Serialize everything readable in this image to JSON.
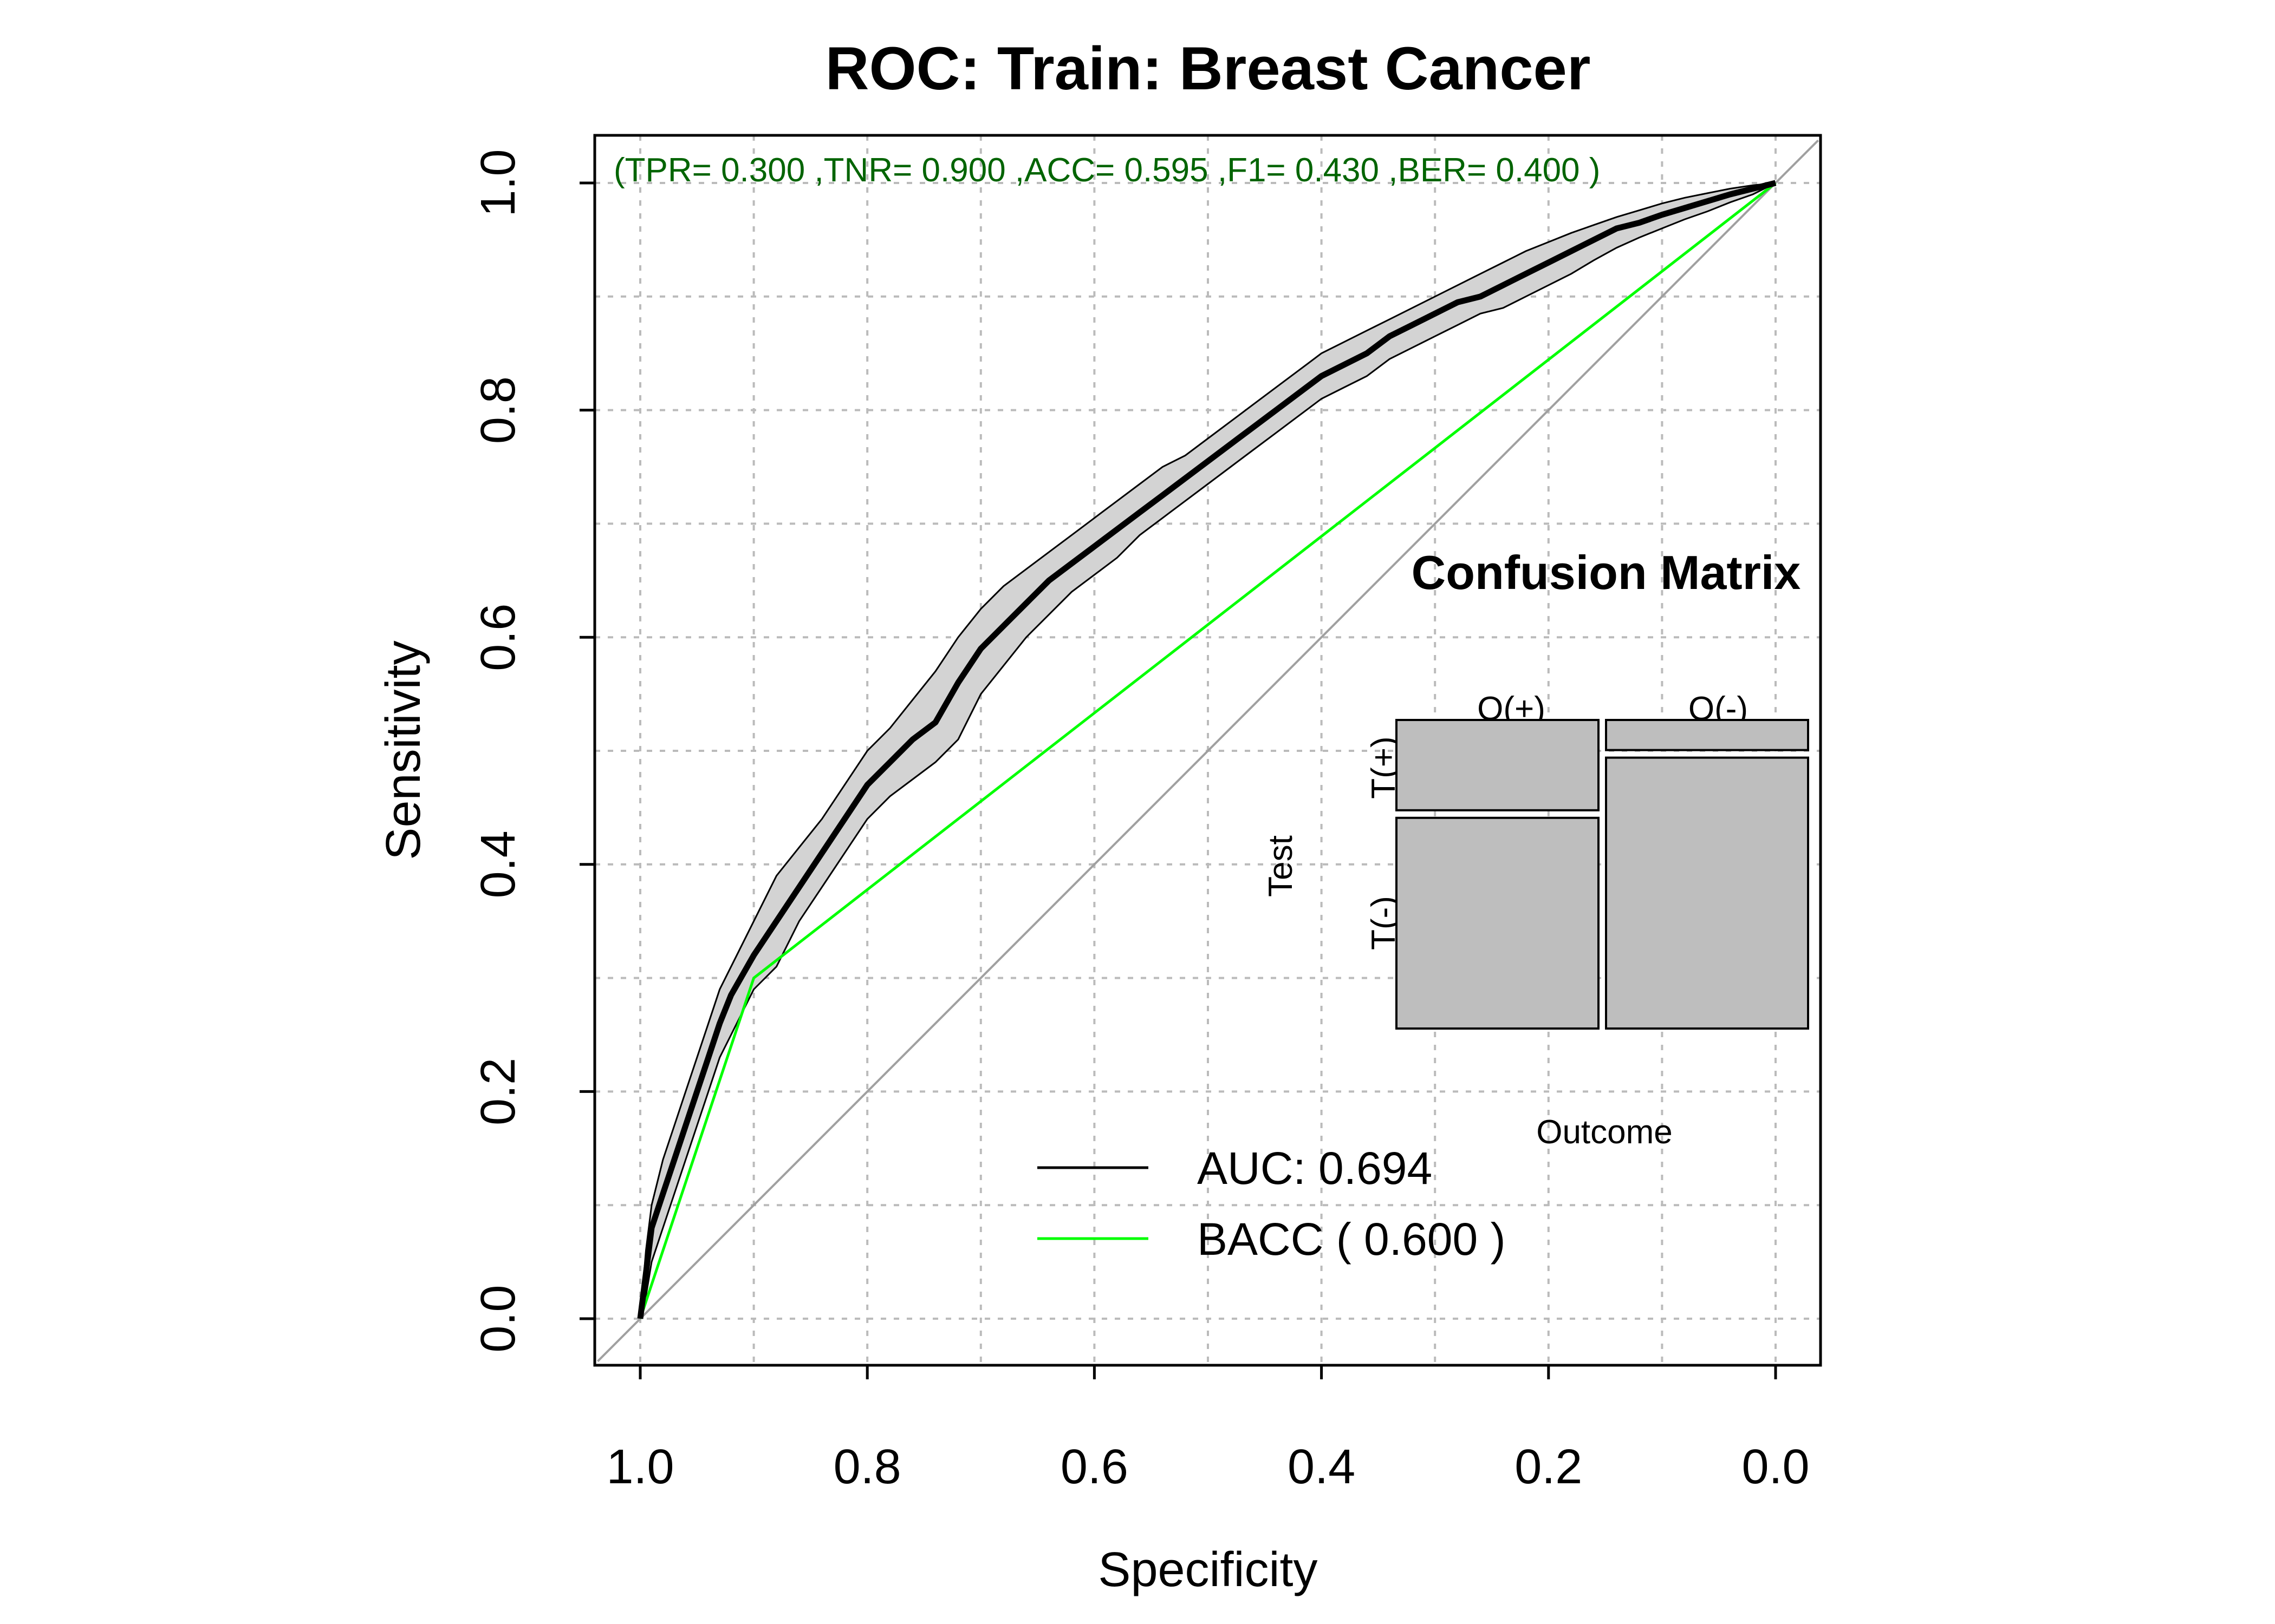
{
  "chart_data": {
    "type": "line",
    "title": "ROC: Train: Breast Cancer",
    "xlabel": "Specificity",
    "ylabel": "Sensitivity",
    "x_reversed": true,
    "xlim": [
      1.0,
      0.0
    ],
    "ylim": [
      0.0,
      1.0
    ],
    "x_ticks": [
      "1.0",
      "0.8",
      "0.6",
      "0.4",
      "0.2",
      "0.0"
    ],
    "y_ticks": [
      "0.0",
      "0.2",
      "0.4",
      "0.6",
      "0.8",
      "1.0"
    ],
    "grid": true,
    "metrics_text": "(TPR= 0.300 ,TNR= 0.900 ,ACC= 0.595 ,F1= 0.430 ,BER= 0.400 )",
    "colors": {
      "roc": "#000000",
      "band_fill": "#d3d3d3",
      "bacc": "#00ff00",
      "diagonal": "#a0a0a0",
      "metrics": "#006400",
      "grid": "#bbbbbb",
      "cm_fill": "#bebebe"
    },
    "series": [
      {
        "role": "roc",
        "specificity": [
          1.0,
          0.995,
          0.99,
          0.98,
          0.97,
          0.96,
          0.95,
          0.94,
          0.93,
          0.92,
          0.9,
          0.88,
          0.86,
          0.84,
          0.82,
          0.8,
          0.78,
          0.76,
          0.74,
          0.72,
          0.7,
          0.68,
          0.66,
          0.64,
          0.62,
          0.6,
          0.58,
          0.56,
          0.54,
          0.52,
          0.5,
          0.48,
          0.46,
          0.44,
          0.42,
          0.4,
          0.38,
          0.36,
          0.34,
          0.32,
          0.3,
          0.28,
          0.26,
          0.24,
          0.22,
          0.2,
          0.18,
          0.16,
          0.14,
          0.12,
          0.1,
          0.08,
          0.06,
          0.04,
          0.02,
          0.0
        ],
        "sensitivity": [
          0.0,
          0.04,
          0.08,
          0.11,
          0.14,
          0.17,
          0.2,
          0.23,
          0.26,
          0.285,
          0.32,
          0.35,
          0.38,
          0.41,
          0.44,
          0.47,
          0.49,
          0.51,
          0.525,
          0.56,
          0.59,
          0.61,
          0.63,
          0.65,
          0.665,
          0.68,
          0.695,
          0.71,
          0.725,
          0.74,
          0.755,
          0.77,
          0.785,
          0.8,
          0.815,
          0.83,
          0.84,
          0.85,
          0.865,
          0.875,
          0.885,
          0.895,
          0.9,
          0.91,
          0.92,
          0.93,
          0.94,
          0.95,
          0.96,
          0.965,
          0.972,
          0.978,
          0.984,
          0.99,
          0.995,
          1.0
        ]
      },
      {
        "role": "band_upper",
        "specificity": [
          1.0,
          0.995,
          0.99,
          0.98,
          0.97,
          0.96,
          0.95,
          0.94,
          0.93,
          0.92,
          0.9,
          0.88,
          0.86,
          0.84,
          0.82,
          0.8,
          0.78,
          0.76,
          0.74,
          0.72,
          0.7,
          0.68,
          0.66,
          0.64,
          0.62,
          0.6,
          0.58,
          0.56,
          0.54,
          0.52,
          0.5,
          0.48,
          0.46,
          0.44,
          0.42,
          0.4,
          0.38,
          0.36,
          0.34,
          0.32,
          0.3,
          0.28,
          0.26,
          0.24,
          0.22,
          0.2,
          0.18,
          0.16,
          0.14,
          0.12,
          0.1,
          0.08,
          0.06,
          0.04,
          0.02,
          0.0
        ],
        "sensitivity": [
          0.0,
          0.06,
          0.1,
          0.14,
          0.17,
          0.2,
          0.23,
          0.26,
          0.29,
          0.31,
          0.35,
          0.39,
          0.415,
          0.44,
          0.47,
          0.5,
          0.52,
          0.545,
          0.57,
          0.6,
          0.625,
          0.645,
          0.66,
          0.675,
          0.69,
          0.705,
          0.72,
          0.735,
          0.75,
          0.76,
          0.775,
          0.79,
          0.805,
          0.82,
          0.835,
          0.85,
          0.86,
          0.87,
          0.88,
          0.89,
          0.9,
          0.91,
          0.92,
          0.93,
          0.94,
          0.948,
          0.956,
          0.963,
          0.97,
          0.976,
          0.982,
          0.987,
          0.991,
          0.995,
          0.998,
          1.0
        ]
      },
      {
        "role": "band_lower",
        "specificity": [
          1.0,
          0.995,
          0.99,
          0.98,
          0.97,
          0.96,
          0.95,
          0.94,
          0.93,
          0.92,
          0.9,
          0.88,
          0.86,
          0.84,
          0.82,
          0.8,
          0.78,
          0.76,
          0.74,
          0.72,
          0.7,
          0.68,
          0.66,
          0.64,
          0.62,
          0.6,
          0.58,
          0.56,
          0.54,
          0.52,
          0.5,
          0.48,
          0.46,
          0.44,
          0.42,
          0.4,
          0.38,
          0.36,
          0.34,
          0.32,
          0.3,
          0.28,
          0.26,
          0.24,
          0.22,
          0.2,
          0.18,
          0.16,
          0.14,
          0.12,
          0.1,
          0.08,
          0.06,
          0.04,
          0.02,
          0.0
        ],
        "sensitivity": [
          0.0,
          0.02,
          0.05,
          0.08,
          0.11,
          0.14,
          0.17,
          0.2,
          0.23,
          0.25,
          0.29,
          0.31,
          0.35,
          0.38,
          0.41,
          0.44,
          0.46,
          0.475,
          0.49,
          0.51,
          0.55,
          0.575,
          0.6,
          0.62,
          0.64,
          0.655,
          0.67,
          0.69,
          0.705,
          0.72,
          0.735,
          0.75,
          0.765,
          0.78,
          0.795,
          0.81,
          0.82,
          0.83,
          0.845,
          0.855,
          0.865,
          0.875,
          0.885,
          0.89,
          0.9,
          0.91,
          0.92,
          0.932,
          0.943,
          0.952,
          0.96,
          0.968,
          0.975,
          0.983,
          0.99,
          1.0
        ]
      },
      {
        "role": "bacc",
        "specificity": [
          1.0,
          0.9,
          0.0
        ],
        "sensitivity": [
          0.0,
          0.3,
          1.0
        ]
      },
      {
        "role": "diagonal",
        "specificity": [
          1.0375,
          -0.0375
        ],
        "sensitivity": [
          -0.0375,
          1.0375
        ]
      }
    ],
    "legend": {
      "position": "bottom-right",
      "entries": [
        {
          "label": "AUC:  0.694",
          "color": "#000000"
        },
        {
          "label": "BACC ( 0.600 )",
          "color": "#00ff00"
        }
      ]
    },
    "confusion_matrix": {
      "title": "Confusion Matrix",
      "xlabel": "Outcome",
      "ylabel": "Test",
      "col_labels": [
        "O(+)",
        "O(-)"
      ],
      "row_labels": [
        "T(+)",
        "T(-)"
      ],
      "outcome_pos_share": 0.5,
      "test_pos_share_given_outcome_pos": 0.3,
      "test_pos_share_given_outcome_neg": 0.1
    }
  }
}
